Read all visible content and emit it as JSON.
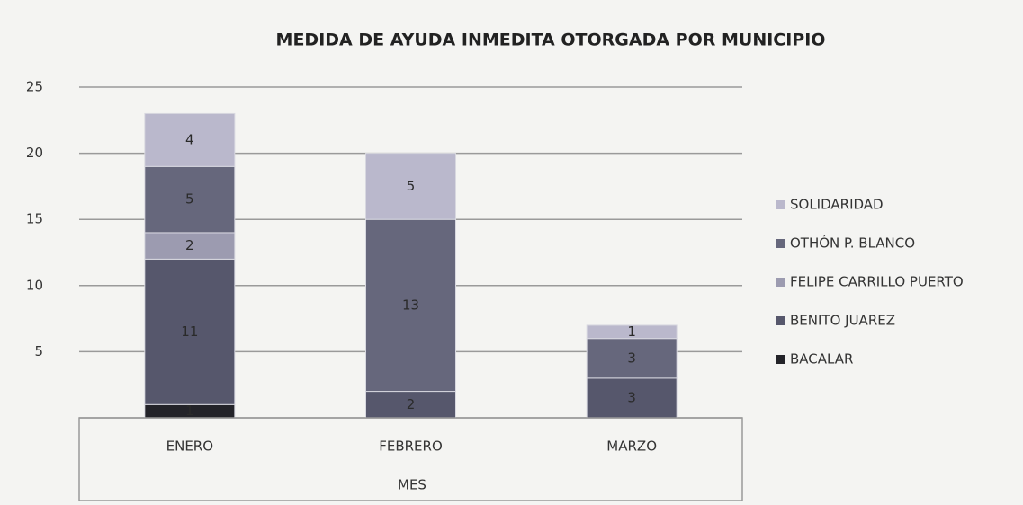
{
  "chart_data": {
    "type": "stacked_bar",
    "title": "MEDIDA DE AYUDA INMEDITA OTORGADA POR MUNICIPIO",
    "x_label": "MES",
    "categories": [
      "ENERO",
      "FEBRERO",
      "MARZO"
    ],
    "series": [
      {
        "name": "BACALAR",
        "color": "#232329",
        "values": [
          1,
          0,
          0
        ]
      },
      {
        "name": "BENITO JUAREZ",
        "color": "#56576c",
        "values": [
          11,
          2,
          3
        ]
      },
      {
        "name": "FELIPE CARRILLO PUERTO",
        "color": "#9c9bb0",
        "values": [
          2,
          0,
          0
        ]
      },
      {
        "name": "OTHÓN P. BLANCO",
        "color": "#66677c",
        "values": [
          5,
          13,
          3
        ]
      },
      {
        "name": "SOLIDARIDAD",
        "color": "#bab8cc",
        "values": [
          4,
          5,
          1
        ]
      }
    ],
    "ylim": [
      0,
      25
    ],
    "yticks": [
      5,
      10,
      15,
      20,
      25
    ],
    "grid": true,
    "legend": "right"
  }
}
